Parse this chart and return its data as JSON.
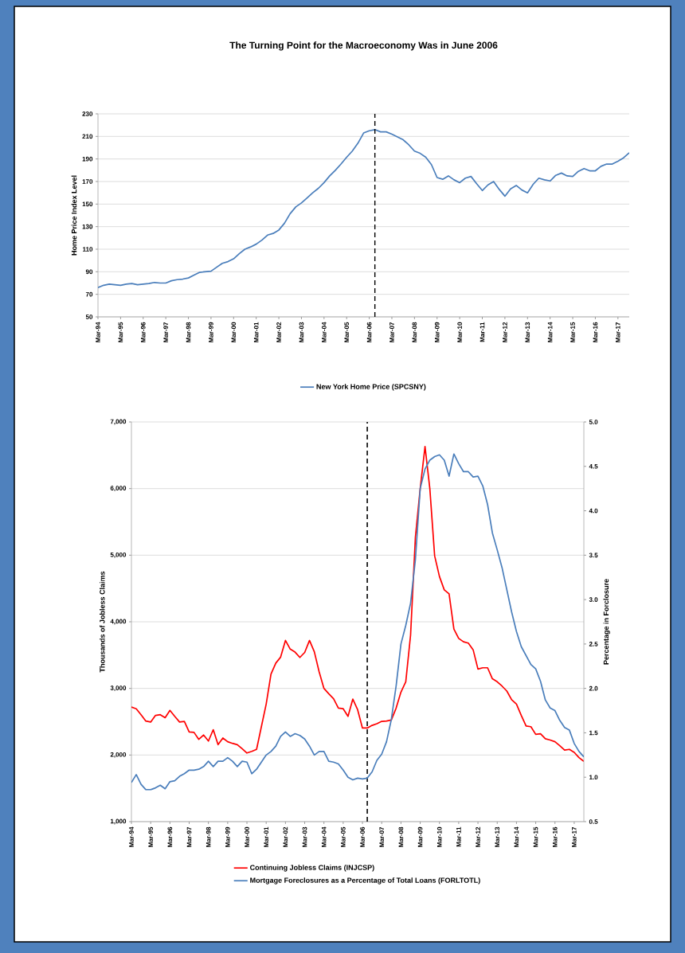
{
  "chart_data": [
    {
      "type": "line",
      "title": "The Turning Point for the Macroeconomy Was in June 2006",
      "ylabel": "Home Price Index Level",
      "x": [
        "1994-03",
        "1994-06",
        "1994-09",
        "1994-12",
        "1995-03",
        "1995-06",
        "1995-09",
        "1995-12",
        "1996-03",
        "1996-06",
        "1996-09",
        "1996-12",
        "1997-03",
        "1997-06",
        "1997-09",
        "1997-12",
        "1998-03",
        "1998-06",
        "1998-09",
        "1998-12",
        "1999-03",
        "1999-06",
        "1999-09",
        "1999-12",
        "2000-03",
        "2000-06",
        "2000-09",
        "2000-12",
        "2001-03",
        "2001-06",
        "2001-09",
        "2001-12",
        "2002-03",
        "2002-06",
        "2002-09",
        "2002-12",
        "2003-03",
        "2003-06",
        "2003-09",
        "2003-12",
        "2004-03",
        "2004-06",
        "2004-09",
        "2004-12",
        "2005-03",
        "2005-06",
        "2005-09",
        "2005-12",
        "2006-03",
        "2006-06",
        "2006-09",
        "2006-12",
        "2007-03",
        "2007-06",
        "2007-09",
        "2007-12",
        "2008-03",
        "2008-06",
        "2008-09",
        "2008-12",
        "2009-03",
        "2009-06",
        "2009-09",
        "2009-12",
        "2010-03",
        "2010-06",
        "2010-09",
        "2010-12",
        "2011-03",
        "2011-06",
        "2011-09",
        "2011-12",
        "2012-03",
        "2012-06",
        "2012-09",
        "2012-12",
        "2013-03",
        "2013-06",
        "2013-09",
        "2013-12",
        "2014-03",
        "2014-06",
        "2014-09",
        "2014-12",
        "2015-03",
        "2015-06",
        "2015-09",
        "2015-12",
        "2016-03",
        "2016-06",
        "2016-09",
        "2016-12",
        "2017-03",
        "2017-06",
        "2017-09"
      ],
      "xlim": [
        "1994-03",
        "2017-09"
      ],
      "xticks": [
        {
          "value": "1994-03",
          "label": "Mar-94"
        },
        {
          "value": "1995-03",
          "label": "Mar-95"
        },
        {
          "value": "1996-03",
          "label": "Mar-96"
        },
        {
          "value": "1997-03",
          "label": "Mar-97"
        },
        {
          "value": "1998-03",
          "label": "Mar-98"
        },
        {
          "value": "1999-03",
          "label": "Mar-99"
        },
        {
          "value": "2000-03",
          "label": "Mar-00"
        },
        {
          "value": "2001-03",
          "label": "Mar-01"
        },
        {
          "value": "2002-03",
          "label": "Mar-02"
        },
        {
          "value": "2003-03",
          "label": "Mar-03"
        },
        {
          "value": "2004-03",
          "label": "Mar-04"
        },
        {
          "value": "2005-03",
          "label": "Mar-05"
        },
        {
          "value": "2006-03",
          "label": "Mar-06"
        },
        {
          "value": "2007-03",
          "label": "Mar-07"
        },
        {
          "value": "2008-03",
          "label": "Mar-08"
        },
        {
          "value": "2009-03",
          "label": "Mar-09"
        },
        {
          "value": "2010-03",
          "label": "Mar-10"
        },
        {
          "value": "2011-03",
          "label": "Mar-11"
        },
        {
          "value": "2012-03",
          "label": "Mar-12"
        },
        {
          "value": "2013-03",
          "label": "Mar-13"
        },
        {
          "value": "2014-03",
          "label": "Mar-14"
        },
        {
          "value": "2015-03",
          "label": "Mar-15"
        },
        {
          "value": "2016-03",
          "label": "Mar-16"
        },
        {
          "value": "2017-03",
          "label": "Mar-17"
        }
      ],
      "ylim": [
        50,
        230
      ],
      "yticks": [
        50,
        70,
        90,
        110,
        130,
        150,
        170,
        190,
        210,
        230
      ],
      "grid": "y",
      "legend": "bottom",
      "ref_lines": [
        {
          "axis": "x",
          "value": "2006-06",
          "color": "#000000",
          "line_style": "dashed"
        }
      ],
      "series": [
        {
          "name": "New York Home Price (SPCSNY)",
          "color": "#4a7ebb",
          "values": [
            76,
            78,
            79,
            78.5,
            78,
            79,
            79.5,
            78.5,
            79,
            79.5,
            80.5,
            80,
            80,
            82,
            83,
            83.5,
            84.5,
            87,
            89.5,
            90,
            90.5,
            94,
            97.5,
            99,
            101.5,
            106,
            110,
            112,
            114.5,
            118,
            122.5,
            124,
            127,
            133,
            141.5,
            147.5,
            151,
            155.5,
            160,
            164,
            169,
            175,
            180,
            185.5,
            191.5,
            197,
            204,
            213,
            215,
            216,
            214,
            214,
            212,
            209.5,
            207,
            202.5,
            197,
            195,
            191.5,
            185,
            173.5,
            172,
            175,
            171.5,
            169,
            173,
            174.5,
            168,
            162,
            167,
            170,
            163,
            157,
            163.5,
            166.5,
            162.5,
            160,
            167.5,
            173,
            171.5,
            170.5,
            175.5,
            177.5,
            175,
            174.5,
            179,
            181.5,
            179.5,
            179.5,
            183.5,
            185.5,
            185.5,
            188,
            191,
            195.5
          ]
        }
      ]
    },
    {
      "type": "line",
      "ylabel": "Thousands of Jobless Claims",
      "y2label": "Percentage in Forclosure",
      "x": [
        "1994-03",
        "1994-06",
        "1994-09",
        "1994-12",
        "1995-03",
        "1995-06",
        "1995-09",
        "1995-12",
        "1996-03",
        "1996-06",
        "1996-09",
        "1996-12",
        "1997-03",
        "1997-06",
        "1997-09",
        "1997-12",
        "1998-03",
        "1998-06",
        "1998-09",
        "1998-12",
        "1999-03",
        "1999-06",
        "1999-09",
        "1999-12",
        "2000-03",
        "2000-06",
        "2000-09",
        "2000-12",
        "2001-03",
        "2001-06",
        "2001-09",
        "2001-12",
        "2002-03",
        "2002-06",
        "2002-09",
        "2002-12",
        "2003-03",
        "2003-06",
        "2003-09",
        "2003-12",
        "2004-03",
        "2004-06",
        "2004-09",
        "2004-12",
        "2005-03",
        "2005-06",
        "2005-09",
        "2005-12",
        "2006-03",
        "2006-06",
        "2006-09",
        "2006-12",
        "2007-03",
        "2007-06",
        "2007-09",
        "2007-12",
        "2008-03",
        "2008-06",
        "2008-09",
        "2008-12",
        "2009-03",
        "2009-06",
        "2009-09",
        "2009-12",
        "2010-03",
        "2010-06",
        "2010-09",
        "2010-12",
        "2011-03",
        "2011-06",
        "2011-09",
        "2011-12",
        "2012-03",
        "2012-06",
        "2012-09",
        "2012-12",
        "2013-03",
        "2013-06",
        "2013-09",
        "2013-12",
        "2014-03",
        "2014-06",
        "2014-09",
        "2014-12",
        "2015-03",
        "2015-06",
        "2015-09",
        "2015-12",
        "2016-03",
        "2016-06",
        "2016-09",
        "2016-12",
        "2017-03",
        "2017-06",
        "2017-09"
      ],
      "xlim": [
        "1994-03",
        "2017-09"
      ],
      "xticks": [
        {
          "value": "1994-03",
          "label": "Mar-94"
        },
        {
          "value": "1995-03",
          "label": "Mar-95"
        },
        {
          "value": "1996-03",
          "label": "Mar-96"
        },
        {
          "value": "1997-03",
          "label": "Mar-97"
        },
        {
          "value": "1998-03",
          "label": "Mar-98"
        },
        {
          "value": "1999-03",
          "label": "Mar-99"
        },
        {
          "value": "2000-03",
          "label": "Mar-00"
        },
        {
          "value": "2001-03",
          "label": "Mar-01"
        },
        {
          "value": "2002-03",
          "label": "Mar-02"
        },
        {
          "value": "2003-03",
          "label": "Mar-03"
        },
        {
          "value": "2004-03",
          "label": "Mar-04"
        },
        {
          "value": "2005-03",
          "label": "Mar-05"
        },
        {
          "value": "2006-03",
          "label": "Mar-06"
        },
        {
          "value": "2007-03",
          "label": "Mar-07"
        },
        {
          "value": "2008-03",
          "label": "Mar-08"
        },
        {
          "value": "2009-03",
          "label": "Mar-09"
        },
        {
          "value": "2010-03",
          "label": "Mar-10"
        },
        {
          "value": "2011-03",
          "label": "Mar-11"
        },
        {
          "value": "2012-03",
          "label": "Mar-12"
        },
        {
          "value": "2013-03",
          "label": "Mar-13"
        },
        {
          "value": "2014-03",
          "label": "Mar-14"
        },
        {
          "value": "2015-03",
          "label": "Mar-15"
        },
        {
          "value": "2016-03",
          "label": "Mar-16"
        },
        {
          "value": "2017-03",
          "label": "Mar-17"
        }
      ],
      "ylim": [
        1000,
        7000
      ],
      "yticks": [
        {
          "value": 1000,
          "label": "1,000"
        },
        {
          "value": 2000,
          "label": "2,000"
        },
        {
          "value": 3000,
          "label": "3,000"
        },
        {
          "value": 4000,
          "label": "4,000"
        },
        {
          "value": 5000,
          "label": "5,000"
        },
        {
          "value": 6000,
          "label": "6,000"
        },
        {
          "value": 7000,
          "label": "7,000"
        }
      ],
      "y2lim": [
        0.5,
        5.0
      ],
      "y2ticks": [
        {
          "value": 0.5,
          "label": "0.5"
        },
        {
          "value": 1.0,
          "label": "1.0"
        },
        {
          "value": 1.5,
          "label": "1.5"
        },
        {
          "value": 2.0,
          "label": "2.0"
        },
        {
          "value": 2.5,
          "label": "2.5"
        },
        {
          "value": 3.0,
          "label": "3.0"
        },
        {
          "value": 3.5,
          "label": "3.5"
        },
        {
          "value": 4.0,
          "label": "4.0"
        },
        {
          "value": 4.5,
          "label": "4.5"
        },
        {
          "value": 5.0,
          "label": "5.0"
        }
      ],
      "grid": "y",
      "legend": "bottom",
      "ref_lines": [
        {
          "axis": "x",
          "value": "2006-06",
          "color": "#000000",
          "line_style": "dashed"
        }
      ],
      "series": [
        {
          "name": "Continuing Jobless Claims (INJCSP)",
          "color": "#ff0000",
          "axis": "y",
          "values": [
            2720,
            2695,
            2605,
            2510,
            2495,
            2595,
            2605,
            2560,
            2670,
            2580,
            2495,
            2505,
            2345,
            2340,
            2235,
            2300,
            2210,
            2380,
            2155,
            2255,
            2200,
            2175,
            2155,
            2095,
            2030,
            2055,
            2085,
            2425,
            2765,
            3215,
            3380,
            3470,
            3720,
            3590,
            3545,
            3465,
            3540,
            3720,
            3550,
            3250,
            3000,
            2920,
            2845,
            2705,
            2695,
            2580,
            2840,
            2680,
            2405,
            2405,
            2445,
            2470,
            2505,
            2510,
            2525,
            2705,
            2945,
            3100,
            3800,
            5270,
            6000,
            6630,
            6000,
            4990,
            4680,
            4480,
            4420,
            3890,
            3750,
            3700,
            3680,
            3580,
            3290,
            3310,
            3310,
            3145,
            3100,
            3035,
            2960,
            2830,
            2765,
            2595,
            2435,
            2425,
            2310,
            2320,
            2245,
            2225,
            2200,
            2140,
            2075,
            2085,
            2040,
            1960,
            1905
          ]
        },
        {
          "name": "Mortgage Foreclosures as a Percentage of Total Loans (FORLTOTL)",
          "color": "#4a7ebb",
          "axis": "y2",
          "values": [
            0.94,
            1.03,
            0.92,
            0.86,
            0.86,
            0.88,
            0.91,
            0.87,
            0.95,
            0.96,
            1.01,
            1.04,
            1.08,
            1.08,
            1.09,
            1.12,
            1.18,
            1.12,
            1.18,
            1.18,
            1.22,
            1.18,
            1.12,
            1.18,
            1.17,
            1.04,
            1.09,
            1.17,
            1.25,
            1.29,
            1.35,
            1.46,
            1.51,
            1.46,
            1.49,
            1.47,
            1.43,
            1.35,
            1.25,
            1.29,
            1.29,
            1.18,
            1.17,
            1.15,
            1.08,
            1.0,
            0.97,
            0.99,
            0.98,
            0.99,
            1.06,
            1.19,
            1.26,
            1.4,
            1.65,
            2.03,
            2.5,
            2.71,
            2.96,
            3.45,
            4.25,
            4.47,
            4.57,
            4.61,
            4.63,
            4.57,
            4.39,
            4.64,
            4.53,
            4.44,
            4.44,
            4.38,
            4.39,
            4.28,
            4.07,
            3.75,
            3.56,
            3.36,
            3.11,
            2.86,
            2.64,
            2.47,
            2.37,
            2.27,
            2.22,
            2.08,
            1.87,
            1.78,
            1.75,
            1.64,
            1.56,
            1.53,
            1.38,
            1.29,
            1.23
          ]
        }
      ]
    }
  ]
}
